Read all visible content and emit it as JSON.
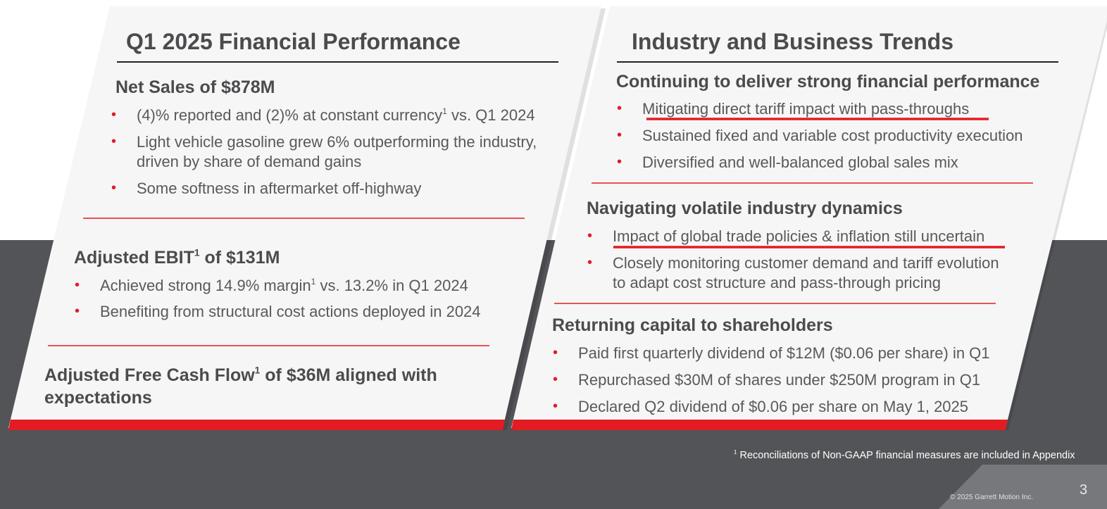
{
  "left_panel": {
    "title": "Q1 2025 Financial Performance",
    "sections": [
      {
        "heading_pre": "Net Sales of $878M",
        "bullets": [
          {
            "pre": "(4)% reported and (2)% at constant currency",
            "sup": "1",
            "post": " vs. Q1 2024"
          },
          {
            "lines": [
              "Light vehicle gasoline grew 6% outperforming the industry,",
              "driven by share of demand gains"
            ]
          },
          {
            "text": "Some softness in aftermarket off-highway"
          }
        ]
      },
      {
        "heading_pre": "Adjusted EBIT",
        "heading_sup": "1",
        "heading_post": " of $131M",
        "bullets": [
          {
            "pre": "Achieved strong 14.9% margin",
            "sup": "1",
            "post": " vs. 13.2% in Q1 2024"
          },
          {
            "text": "Benefiting from structural cost actions deployed in 2024"
          }
        ]
      },
      {
        "heading_pre": "Adjusted Free Cash Flow",
        "heading_sup": "1",
        "heading_post": " of $36M aligned with",
        "heading_line2": "expectations"
      }
    ]
  },
  "right_panel": {
    "title": "Industry and Business Trends",
    "sections": [
      {
        "heading": "Continuing to deliver strong financial performance",
        "bullets": [
          "Mitigating direct tariff impact with pass-throughs",
          "Sustained fixed and variable cost productivity execution",
          "Diversified and well-balanced global sales mix"
        ]
      },
      {
        "heading": "Navigating volatile industry dynamics",
        "bullets": [
          "Impact of global trade policies & inflation still uncertain",
          "Closely monitoring customer demand and tariff evolution",
          "to adapt cost structure and pass-through pricing"
        ]
      },
      {
        "heading": "Returning capital to shareholders",
        "bullets": [
          "Paid first quarterly dividend of $12M ($0.06 per share) in Q1",
          "Repurchased $30M of shares under $250M program in Q1",
          "Declared Q2 dividend of $0.06 per share on May 1, 2025"
        ]
      }
    ]
  },
  "bullet_glyph": "•",
  "footnote": {
    "sup": "1",
    "text": " Reconciliations of Non-GAAP financial measures are included in Appendix"
  },
  "copyright": "© 2025 Garrett Motion Inc.",
  "page_number": "3",
  "colors": {
    "accent_red": "#e31b23",
    "dark_band": "#535457",
    "panel_fill": "#f2f2f3",
    "text_gray": "#58595b",
    "corner_gray": "#7a7b7e"
  }
}
